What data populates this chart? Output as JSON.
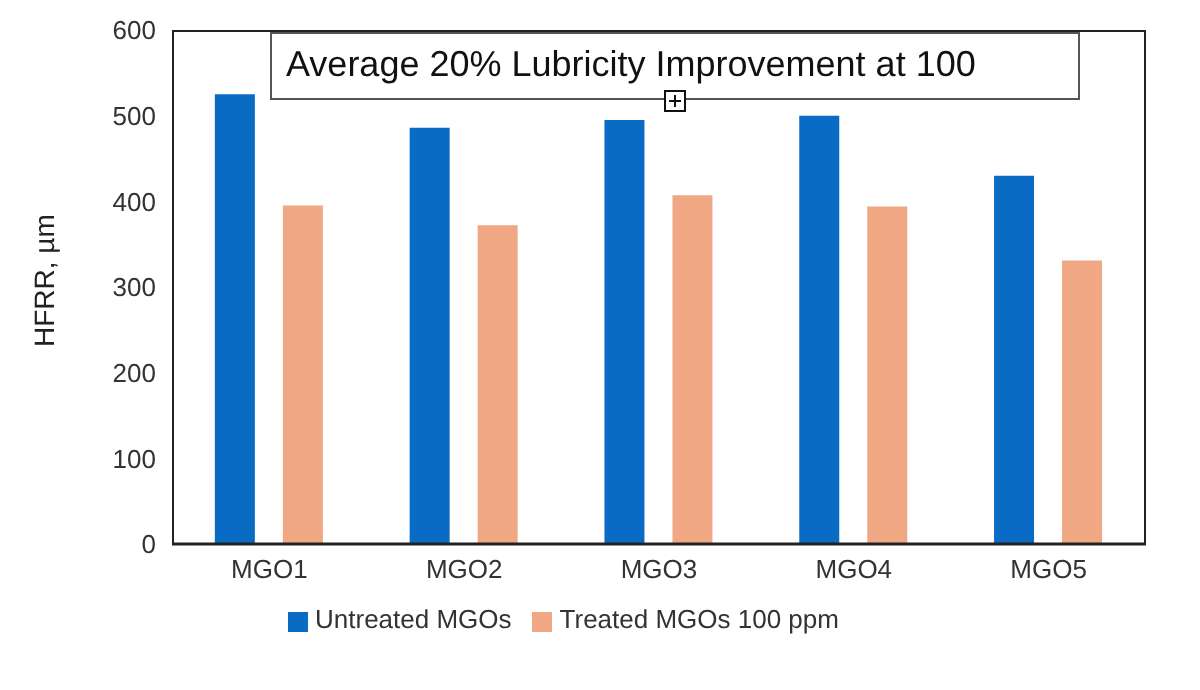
{
  "chart_data": {
    "type": "bar",
    "ylabel": "HFRR, µm",
    "categories": [
      "MGO1",
      "MGO2",
      "MGO3",
      "MGO4",
      "MGO5"
    ],
    "series": [
      {
        "name": "Untreated MGOs",
        "color": "#0a6bc5",
        "values": [
          525,
          486,
          495,
          500,
          430
        ]
      },
      {
        "name": "Treated MGOs 100 ppm",
        "color": "#f0a784",
        "values": [
          395,
          372,
          407,
          394,
          331
        ]
      }
    ],
    "ylim": [
      0,
      600
    ],
    "yticks": [
      0,
      100,
      200,
      300,
      400,
      500,
      600
    ],
    "legend": "bottom",
    "annotations": [
      "Average 20% Lubricity Improvement at 100"
    ]
  }
}
